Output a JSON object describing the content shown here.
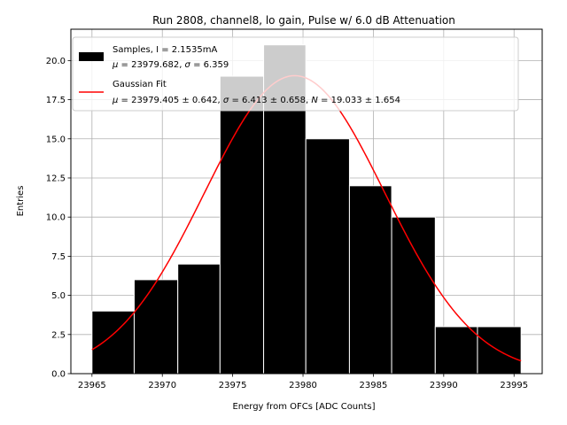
{
  "chart_data": {
    "type": "bar",
    "title": "Run 2808, channel8, lo gain, Pulse w/ 6.0 dB Attenuation",
    "xlabel": "Energy from OFCs [ADC Counts]",
    "ylabel": "Entries",
    "xlim": [
      23963.5,
      23997.0
    ],
    "ylim": [
      0,
      22.0
    ],
    "xticks": [
      23965,
      23970,
      23975,
      23980,
      23985,
      23990,
      23995
    ],
    "yticks": [
      0.0,
      2.5,
      5.0,
      7.5,
      10.0,
      12.5,
      15.0,
      17.5,
      20.0
    ],
    "grid": true,
    "legend_position": "top-left",
    "histogram": {
      "bin_edges": [
        23965.0,
        23968.0,
        23971.1,
        23974.1,
        23977.2,
        23980.2,
        23983.3,
        23986.3,
        23989.4,
        23992.4,
        23995.5
      ],
      "counts": [
        4,
        6,
        7,
        19,
        21,
        15,
        12,
        10,
        3,
        3
      ],
      "color": "#000000",
      "edgecolor": "#ffffff"
    },
    "fit": {
      "mu": 23979.405,
      "sigma": 6.413,
      "N": 19.033,
      "x_range": [
        23965.0,
        23995.5
      ],
      "color": "#ff0000"
    },
    "legend": [
      {
        "kind": "patch",
        "color": "#000000",
        "line1": "Samples, I = 2.1535mA",
        "line2_mu": "μ",
        "line2_rest": " = 23979.682, ",
        "line2_sigma": "σ",
        "line2_end": " = 6.359"
      },
      {
        "kind": "line",
        "color": "#ff0000",
        "line1": "Gaussian Fit",
        "line2_mu": "μ",
        "line2_rest": " = 23979.405 ± 0.642, ",
        "line2_sigma": "σ",
        "line2_mid": " = 6.413 ± 0.658, ",
        "line2_n": "N",
        "line2_end": " = 19.033 ± 1.654"
      }
    ]
  }
}
